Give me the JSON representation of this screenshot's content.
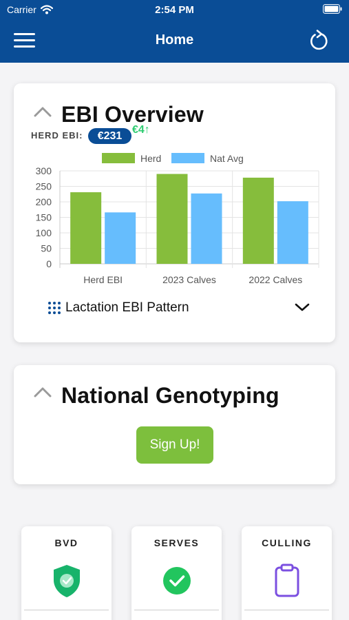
{
  "status_bar": {
    "carrier": "Carrier",
    "time": "2:54 PM"
  },
  "nav": {
    "title": "Home",
    "menu_icon": "hamburger-icon",
    "refresh_icon": "refresh-icon"
  },
  "ebi_card": {
    "title": "EBI Overview",
    "herd_label": "HERD EBI:",
    "herd_value": "€231",
    "herd_change": "€4↑",
    "lactation_label": "Lactation EBI Pattern"
  },
  "chart_data": {
    "type": "bar",
    "categories": [
      "Herd EBI",
      "2023 Calves",
      "2022 Calves"
    ],
    "series": [
      {
        "name": "Herd",
        "color": "#86bd3c",
        "values": [
          231,
          290,
          278
        ]
      },
      {
        "name": "Nat Avg",
        "color": "#66bdfd",
        "values": [
          166,
          227,
          202
        ]
      }
    ],
    "y_ticks": [
      "0",
      "50",
      "100",
      "150",
      "200",
      "250",
      "300"
    ],
    "ylim": [
      0,
      300
    ],
    "grid": true,
    "legend": "top-center"
  },
  "genotyping_card": {
    "title": "National Genotyping",
    "signup_label": "Sign Up!"
  },
  "tiles": [
    {
      "title": "BVD",
      "icon": "shield-check-icon",
      "color": "#18b36b"
    },
    {
      "title": "SERVES",
      "icon": "check-circle-icon",
      "color": "#22c55e"
    },
    {
      "title": "CULLING",
      "icon": "clipboard-icon",
      "color": "#7b4fe0"
    }
  ],
  "colors": {
    "brand": "#0a4d96",
    "accent_green": "#7dbf3d"
  }
}
